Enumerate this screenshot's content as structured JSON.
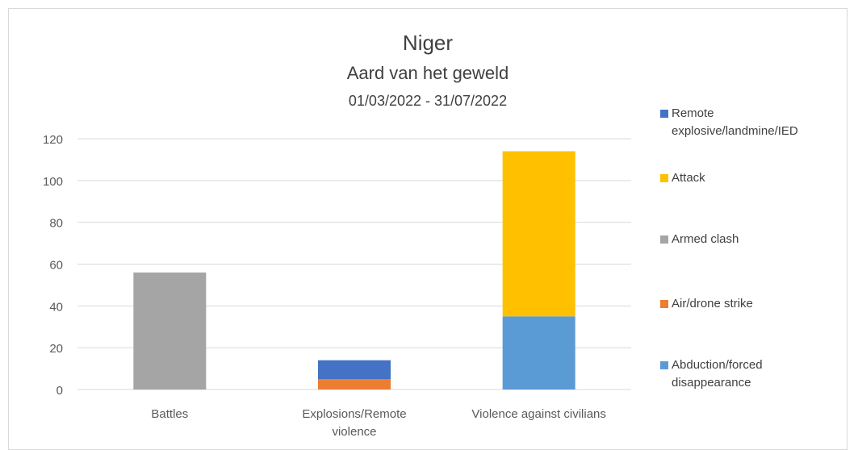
{
  "chart_data": {
    "type": "bar",
    "stacked": true,
    "title": "Niger",
    "subtitle": "Aard van het geweld",
    "date_range": "01/03/2022 - 31/07/2022",
    "categories": [
      "Battles",
      "Explosions/Remote violence",
      "Violence against civilians"
    ],
    "series": [
      {
        "name": "Abduction/forced disappearance",
        "color": "#5B9BD5",
        "values": [
          0,
          0,
          35
        ]
      },
      {
        "name": "Air/drone strike",
        "color": "#ED7D31",
        "values": [
          0,
          5,
          0
        ]
      },
      {
        "name": "Armed clash",
        "color": "#A5A5A5",
        "values": [
          56,
          0,
          0
        ]
      },
      {
        "name": "Attack",
        "color": "#FFC000",
        "values": [
          0,
          0,
          79
        ]
      },
      {
        "name": "Remote explosive/landmine/IED",
        "color": "#4472C4",
        "values": [
          0,
          9,
          0
        ]
      }
    ],
    "ylim": [
      0,
      120
    ],
    "yticks": [
      0,
      20,
      40,
      60,
      80,
      100,
      120
    ],
    "grid": true,
    "legend_position": "right",
    "legend_order": [
      "Remote explosive/landmine/IED",
      "Attack",
      "Armed clash",
      "Air/drone strike",
      "Abduction/forced disappearance"
    ],
    "xlabel": "",
    "ylabel": ""
  }
}
